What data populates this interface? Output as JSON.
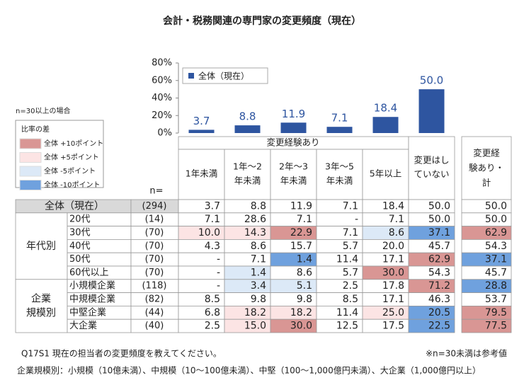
{
  "chart_data": {
    "type": "bar",
    "title": "会計・税務関連の専門家の変更頻度（現在）",
    "categories": [
      [
        "1年未満"
      ],
      [
        "1年～2",
        "年未満"
      ],
      [
        "2年～3",
        "年未満"
      ],
      [
        "3年～5",
        "年未満"
      ],
      [
        "5年以上"
      ],
      [
        "変更はし",
        "ていない"
      ]
    ],
    "series": [
      {
        "name": "全体（現在）",
        "color": "#2e55a0",
        "values": [
          3.7,
          8.8,
          11.9,
          7.1,
          18.4,
          50.0
        ],
        "value_labels": [
          "3.7",
          "8.8",
          "11.9",
          "7.1",
          "18.4",
          "50.0"
        ]
      }
    ],
    "ylim": [
      0,
      80
    ],
    "yticks": [
      {
        "value": 0,
        "label": "0%"
      },
      {
        "value": 20,
        "label": "20%"
      },
      {
        "value": 40,
        "label": "40%"
      },
      {
        "value": 60,
        "label": "60%"
      },
      {
        "value": 80,
        "label": "80%"
      }
    ]
  },
  "table": {
    "span_header": "変更経験あり",
    "n_header": "n=",
    "total_header": [
      "変更経",
      "験あり・",
      "計"
    ],
    "total_row": {
      "label": "全体（現在）",
      "n": "(294)",
      "cells": [
        "3.7",
        "8.8",
        "11.9",
        "7.1",
        "18.4",
        "50.0",
        "50.0"
      ],
      "shades": [
        null,
        null,
        null,
        null,
        null,
        null,
        null
      ]
    },
    "groups": [
      {
        "label": [
          "年代別"
        ],
        "rows": [
          {
            "label": "20代",
            "n": "(14)",
            "cells": [
              "7.1",
              "28.6",
              "7.1",
              "-",
              "7.1",
              "50.0",
              "50.0"
            ],
            "shades": [
              null,
              null,
              null,
              null,
              null,
              null,
              null
            ]
          },
          {
            "label": "30代",
            "n": "(70)",
            "cells": [
              "10.0",
              "14.3",
              "22.9",
              "7.1",
              "8.6",
              "37.1",
              "62.9"
            ],
            "shades": [
              "#fce4e4",
              "#fce4e4",
              "#d99694",
              null,
              "#dce9f7",
              "#6fa1de",
              "#d99694"
            ]
          },
          {
            "label": "40代",
            "n": "(70)",
            "cells": [
              "4.3",
              "8.6",
              "15.7",
              "5.7",
              "20.0",
              "45.7",
              "54.3"
            ],
            "shades": [
              null,
              null,
              null,
              null,
              null,
              null,
              null
            ]
          },
          {
            "label": "50代",
            "n": "(70)",
            "cells": [
              "-",
              "7.1",
              "1.4",
              "11.4",
              "17.1",
              "62.9",
              "37.1"
            ],
            "shades": [
              null,
              null,
              "#6fa1de",
              null,
              null,
              "#d99694",
              "#6fa1de"
            ]
          },
          {
            "label": "60代以上",
            "n": "(70)",
            "cells": [
              "-",
              "1.4",
              "8.6",
              "5.7",
              "30.0",
              "54.3",
              "45.7"
            ],
            "shades": [
              null,
              "#dce9f7",
              null,
              null,
              "#d99694",
              null,
              null
            ]
          }
        ]
      },
      {
        "label": [
          "企業",
          "規模別"
        ],
        "rows": [
          {
            "label": "小規模企業",
            "n": "(118)",
            "cells": [
              "-",
              "3.4",
              "5.1",
              "2.5",
              "17.8",
              "71.2",
              "28.8"
            ],
            "shades": [
              null,
              "#dce9f7",
              "#dce9f7",
              null,
              null,
              "#d99694",
              "#6fa1de"
            ]
          },
          {
            "label": "中規模企業",
            "n": "(82)",
            "cells": [
              "8.5",
              "9.8",
              "9.8",
              "8.5",
              "17.1",
              "46.3",
              "53.7"
            ],
            "shades": [
              null,
              null,
              null,
              null,
              null,
              null,
              null
            ]
          },
          {
            "label": "中堅企業",
            "n": "(44)",
            "cells": [
              "6.8",
              "18.2",
              "18.2",
              "11.4",
              "25.0",
              "20.5",
              "79.5"
            ],
            "shades": [
              null,
              "#fce4e4",
              "#fce4e4",
              null,
              "#fce4e4",
              "#6fa1de",
              "#d99694"
            ]
          },
          {
            "label": "大企業",
            "n": "(40)",
            "cells": [
              "2.5",
              "15.0",
              "30.0",
              "12.5",
              "17.5",
              "22.5",
              "77.5"
            ],
            "shades": [
              null,
              "#fce4e4",
              "#d99694",
              null,
              null,
              "#6fa1de",
              "#d99694"
            ]
          }
        ]
      }
    ]
  },
  "diff_legend": {
    "note": "n=30以上の場合",
    "title": "比率の差",
    "items": [
      {
        "label": "全体 +10ポイント",
        "color": "#d99694"
      },
      {
        "label": "全体 +5ポイント",
        "color": "#fce4e4"
      },
      {
        "label": "全体 -5ポイント",
        "color": "#dce9f7"
      },
      {
        "label": "全体 -10ポイント",
        "color": "#6fa1de"
      }
    ]
  },
  "notes": {
    "question": "Q17S1 現在の担当者の変更頻度を教えてください。",
    "reference": "※n=30未満は参考値",
    "scale": "企業規模別：小規模（10億未満）、中規模（10～100億未満）、中堅（100～1,000億円未満）、大企業（1,000億円以上）"
  }
}
